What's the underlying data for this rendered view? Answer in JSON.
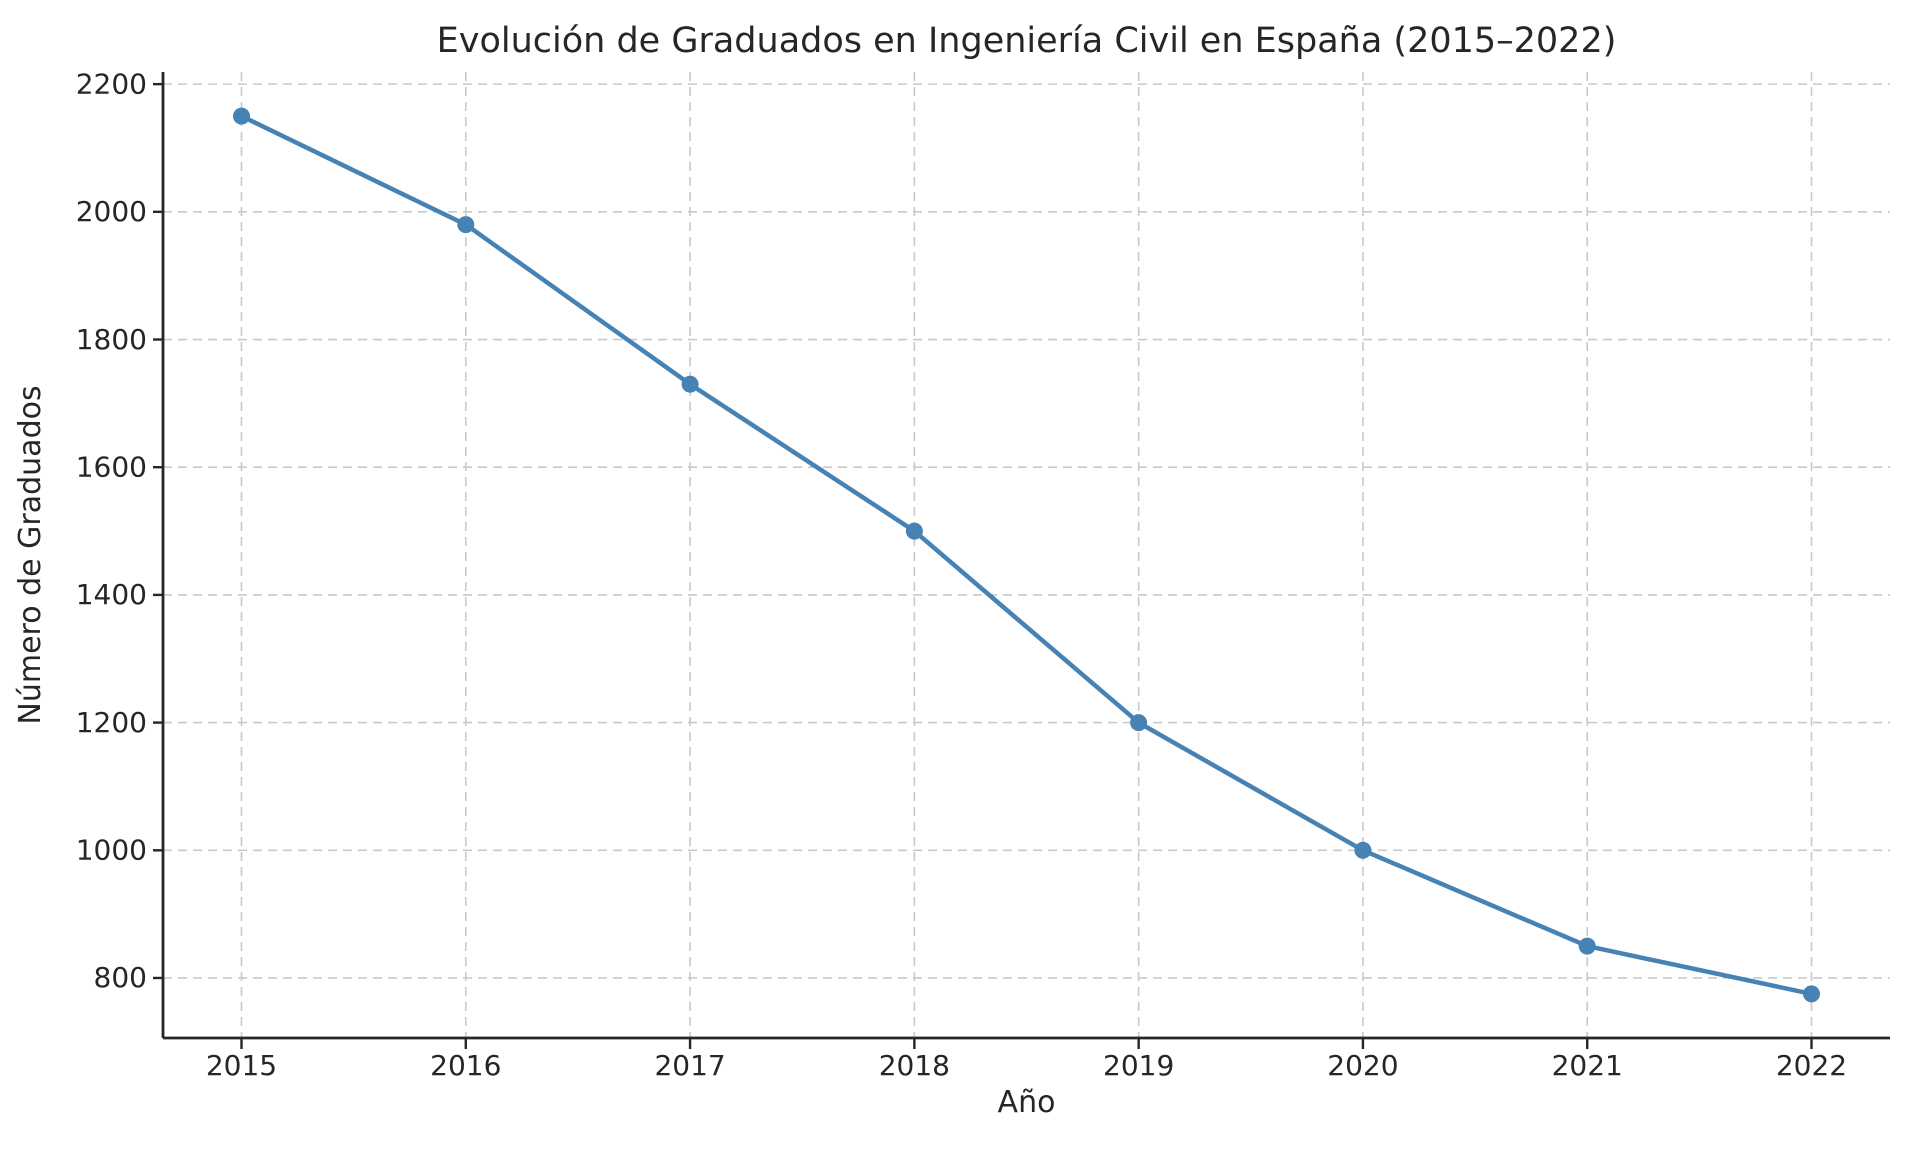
{
  "page": {
    "background": "#ffffff"
  },
  "chart_data": {
    "type": "line",
    "title": "Evolución de Graduados en Ingeniería Civil en España (2015–2022)",
    "xlabel": "Año",
    "ylabel": "Número de Graduados",
    "x": [
      2015,
      2016,
      2017,
      2018,
      2019,
      2020,
      2021,
      2022
    ],
    "series": [
      {
        "name": "Número de Graduados",
        "values": [
          2150,
          1980,
          1730,
          1500,
          1200,
          1000,
          850,
          775
        ]
      }
    ],
    "xticks": [
      2015,
      2016,
      2017,
      2018,
      2019,
      2020,
      2021,
      2022
    ],
    "yticks": [
      800,
      1000,
      1200,
      1400,
      1600,
      1800,
      2000,
      2200
    ],
    "xlim": [
      2014.65,
      2022.35
    ],
    "ylim": [
      706,
      2219
    ],
    "grid": true,
    "grid_style": "dashed",
    "legend_position": "none",
    "line_color": "#4682b4",
    "marker": "circle",
    "marker_radius": 8.5,
    "line_width": 4.5,
    "grid_color": "#c9c9c9",
    "spine_color": "#262626",
    "text_color": "#262626"
  }
}
